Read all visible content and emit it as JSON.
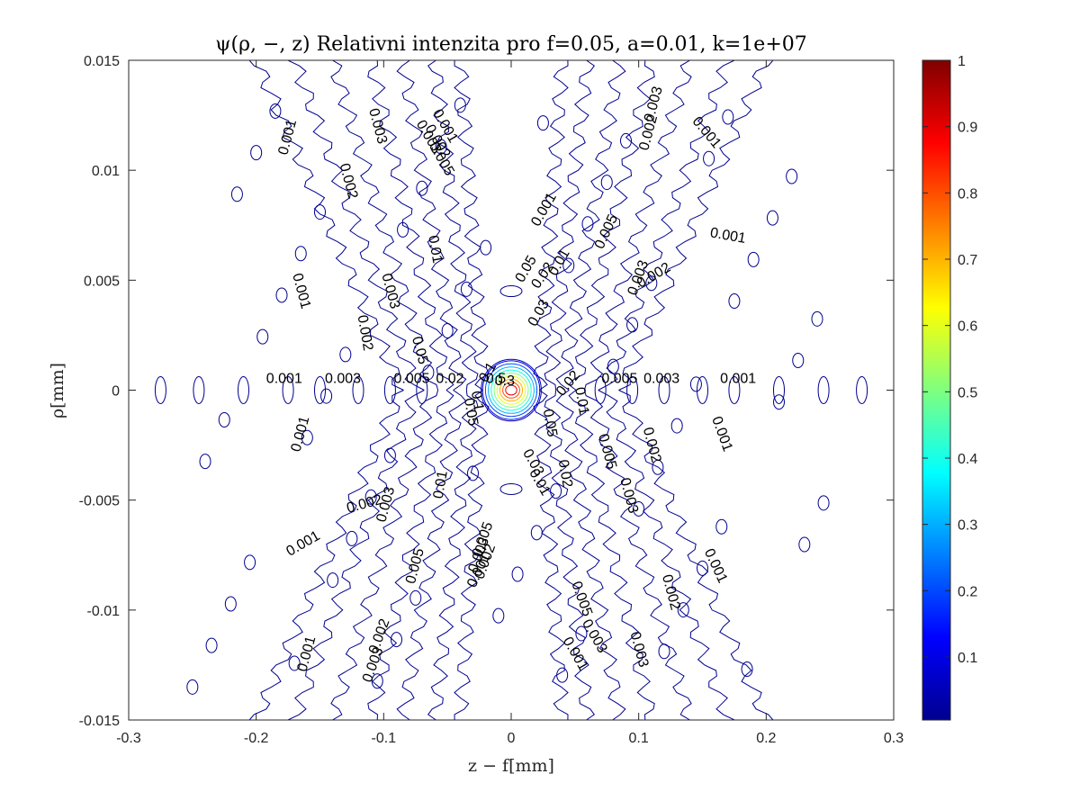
{
  "chart_data": {
    "type": "contour",
    "title": "ψ(ρ, −, z) Relativni intenzita pro f=0.05, a=0.01, k=1e+07",
    "xlabel": "z − f[mm]",
    "ylabel": "ρ[mm]",
    "xlim": [
      -0.3,
      0.3
    ],
    "ylim": [
      -0.015,
      0.015
    ],
    "x_ticks": [
      "-0.3",
      "-0.2",
      "-0.1",
      "0",
      "0.1",
      "0.2",
      "0.3"
    ],
    "y_ticks": [
      "0.015",
      "0.01",
      "0.005",
      "0",
      "-0.005",
      "-0.01",
      "-0.015"
    ],
    "colorbar": {
      "colormap": "jet",
      "range": [
        0.005,
        1
      ],
      "ticks": [
        "1",
        "0.9",
        "0.8",
        "0.7",
        "0.6",
        "0.5",
        "0.4",
        "0.3",
        "0.2",
        "0.1"
      ]
    },
    "focus": {
      "z": 0,
      "rho": 0,
      "peak": 1
    },
    "contour_labels": [
      {
        "text": "0.001",
        "z": -0.175,
        "rho": 0.0115,
        "angle": -75
      },
      {
        "text": "0.003",
        "z": -0.105,
        "rho": 0.012,
        "angle": 75
      },
      {
        "text": "0.002",
        "z": -0.128,
        "rho": 0.0095,
        "angle": 75
      },
      {
        "text": "0.001",
        "z": -0.052,
        "rho": 0.012,
        "angle": 60
      },
      {
        "text": "0.003",
        "z": -0.065,
        "rho": 0.0115,
        "angle": 60
      },
      {
        "text": "0.002",
        "z": -0.058,
        "rho": 0.0113,
        "angle": 60
      },
      {
        "text": "0.005",
        "z": -0.055,
        "rho": 0.0105,
        "angle": 60
      },
      {
        "text": "0.003",
        "z": 0.112,
        "rho": 0.013,
        "angle": -75
      },
      {
        "text": "0.002",
        "z": 0.108,
        "rho": 0.0117,
        "angle": -75
      },
      {
        "text": "0.001",
        "z": 0.153,
        "rho": 0.0117,
        "angle": 50
      },
      {
        "text": "0.001",
        "z": 0.026,
        "rho": 0.0082,
        "angle": -60
      },
      {
        "text": "0.005",
        "z": 0.075,
        "rho": 0.0072,
        "angle": -65
      },
      {
        "text": "0.001",
        "z": 0.17,
        "rho": 0.007,
        "angle": 10
      },
      {
        "text": "0.01",
        "z": -0.06,
        "rho": 0.0064,
        "angle": 80
      },
      {
        "text": "0.003",
        "z": 0.1,
        "rho": 0.0051,
        "angle": -70
      },
      {
        "text": "0.002",
        "z": 0.112,
        "rho": 0.0052,
        "angle": -30
      },
      {
        "text": "0.001",
        "z": -0.165,
        "rho": 0.0045,
        "angle": 75
      },
      {
        "text": "0.003",
        "z": -0.095,
        "rho": 0.0045,
        "angle": 75
      },
      {
        "text": "0.02",
        "z": 0.025,
        "rho": 0.0052,
        "angle": -55
      },
      {
        "text": "0.05",
        "z": 0.012,
        "rho": 0.0055,
        "angle": -60
      },
      {
        "text": "0.01",
        "z": 0.038,
        "rho": 0.0058,
        "angle": -60
      },
      {
        "text": "0.03",
        "z": 0.022,
        "rho": 0.0035,
        "angle": -60
      },
      {
        "text": "0.002",
        "z": -0.115,
        "rho": 0.0026,
        "angle": 80
      },
      {
        "text": "0.05",
        "z": -0.072,
        "rho": 0.0018,
        "angle": 75
      },
      {
        "text": "0.001",
        "z": -0.178,
        "rho": 0.0005,
        "angle": 0
      },
      {
        "text": "0.003",
        "z": -0.132,
        "rho": 0.0005,
        "angle": 0
      },
      {
        "text": "0.005",
        "z": -0.078,
        "rho": 0.0005,
        "angle": 0
      },
      {
        "text": "0.02",
        "z": -0.048,
        "rho": 0.0005,
        "angle": 0
      },
      {
        "text": "0.005",
        "z": 0.085,
        "rho": 0.0005,
        "angle": 0
      },
      {
        "text": "0.003",
        "z": 0.118,
        "rho": 0.0005,
        "angle": 0
      },
      {
        "text": "0.001",
        "z": 0.178,
        "rho": 0.0005,
        "angle": 0
      },
      {
        "text": "0.02",
        "z": 0.045,
        "rho": 0.0003,
        "angle": -50
      },
      {
        "text": "0.1",
        "z": -0.018,
        "rho": 0.0008,
        "angle": -60
      },
      {
        "text": "0.5",
        "z": -0.012,
        "rho": 0.0005,
        "angle": 0
      },
      {
        "text": "0.3",
        "z": -0.005,
        "rho": 0.0004,
        "angle": 0
      },
      {
        "text": "0.05",
        "z": -0.032,
        "rho": -0.001,
        "angle": 80
      },
      {
        "text": "0.1",
        "z": -0.027,
        "rho": -0.0005,
        "angle": 80
      },
      {
        "text": "0.05",
        "z": 0.03,
        "rho": -0.0015,
        "angle": 80
      },
      {
        "text": "0.01",
        "z": 0.055,
        "rho": -0.0005,
        "angle": 80
      },
      {
        "text": "0.005",
        "z": 0.075,
        "rho": -0.0028,
        "angle": 75
      },
      {
        "text": "0.002",
        "z": 0.11,
        "rho": -0.0025,
        "angle": 75
      },
      {
        "text": "0.001",
        "z": 0.165,
        "rho": -0.002,
        "angle": 70
      },
      {
        "text": "0.001",
        "z": -0.165,
        "rho": -0.002,
        "angle": -75
      },
      {
        "text": "0.01",
        "z": -0.055,
        "rho": -0.0043,
        "angle": -80
      },
      {
        "text": "0.02",
        "z": 0.042,
        "rho": -0.0038,
        "angle": 80
      },
      {
        "text": "0.03",
        "z": 0.017,
        "rho": -0.0033,
        "angle": 60
      },
      {
        "text": "0.01",
        "z": 0.022,
        "rho": -0.0042,
        "angle": 60
      },
      {
        "text": "0.003",
        "z": 0.092,
        "rho": -0.0048,
        "angle": 75
      },
      {
        "text": "0.003",
        "z": -0.098,
        "rho": -0.0052,
        "angle": -75
      },
      {
        "text": "0.002",
        "z": -0.115,
        "rho": -0.0052,
        "angle": -15
      },
      {
        "text": "0.001",
        "z": -0.163,
        "rho": -0.007,
        "angle": -30
      },
      {
        "text": "0.005",
        "z": -0.022,
        "rho": -0.0068,
        "angle": -70
      },
      {
        "text": "0.003",
        "z": -0.025,
        "rho": -0.0075,
        "angle": -70
      },
      {
        "text": "0.002",
        "z": -0.02,
        "rho": -0.0078,
        "angle": -70
      },
      {
        "text": "0.001",
        "z": -0.025,
        "rho": -0.0082,
        "angle": -65
      },
      {
        "text": "0.005",
        "z": -0.075,
        "rho": -0.008,
        "angle": -75
      },
      {
        "text": "0.001",
        "z": 0.16,
        "rho": -0.008,
        "angle": 65
      },
      {
        "text": "0.002",
        "z": 0.125,
        "rho": -0.0092,
        "angle": 75
      },
      {
        "text": "0.005",
        "z": 0.055,
        "rho": -0.0095,
        "angle": 70
      },
      {
        "text": "0.003",
        "z": 0.065,
        "rho": -0.0112,
        "angle": 60
      },
      {
        "text": "0.001",
        "z": 0.05,
        "rho": -0.012,
        "angle": 60
      },
      {
        "text": "0.003",
        "z": 0.1,
        "rho": -0.0118,
        "angle": 75
      },
      {
        "text": "0.002",
        "z": -0.103,
        "rho": -0.0112,
        "angle": -70
      },
      {
        "text": "0.003",
        "z": -0.108,
        "rho": -0.0125,
        "angle": -70
      },
      {
        "text": "0.001",
        "z": -0.16,
        "rho": -0.012,
        "angle": -75
      }
    ]
  }
}
